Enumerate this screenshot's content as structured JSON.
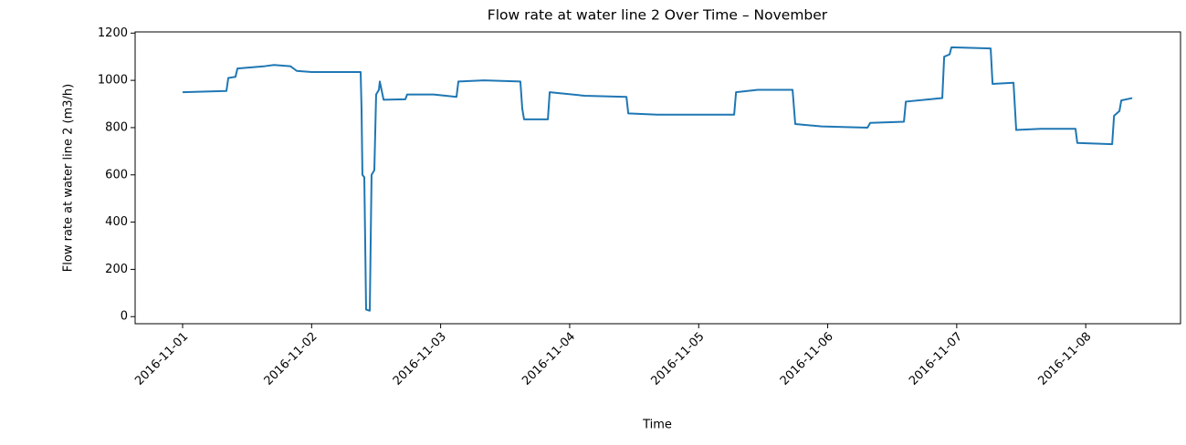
{
  "chart_data": {
    "type": "line",
    "title": "Flow rate at water line 2 Over Time – November",
    "xlabel": "Time",
    "ylabel": "Flow rate at water line 2 (m3/h)",
    "color": "#1f77b4",
    "x": [
      "2016-11-01 00:00",
      "2016-11-01 08:09",
      "2016-11-01 08:30",
      "2016-11-01 09:50",
      "2016-11-01 10:12",
      "2016-11-01 15:17",
      "2016-11-01 17:00",
      "2016-11-01 20:03",
      "2016-11-01 21:14",
      "2016-11-02 00:00",
      "2016-11-02 09:07",
      "2016-11-02 09:17",
      "2016-11-02 09:27",
      "2016-11-02 09:48",
      "2016-11-02 10:08",
      "2016-11-02 10:49",
      "2016-11-02 11:09",
      "2016-11-02 11:40",
      "2016-11-02 12:00",
      "2016-11-02 12:31",
      "2016-11-02 12:41",
      "2016-11-02 13:23",
      "2016-11-02 17:26",
      "2016-11-02 17:46",
      "2016-11-02 22:42",
      "2016-11-03 02:57",
      "2016-11-03 03:18",
      "2016-11-03 08:03",
      "2016-11-03 14:50",
      "2016-11-03 15:11",
      "2016-11-03 15:31",
      "2016-11-03 19:57",
      "2016-11-03 20:17",
      "2016-11-04 02:44",
      "2016-11-04 10:34",
      "2016-11-04 10:54",
      "2016-11-04 16:20",
      "2016-11-05 06:36",
      "2016-11-05 06:57",
      "2016-11-05 11:00",
      "2016-11-05 17:28",
      "2016-11-05 17:58",
      "2016-11-05 22:54",
      "2016-11-06 07:24",
      "2016-11-06 07:55",
      "2016-11-06 14:11",
      "2016-11-06 14:32",
      "2016-11-06 21:19",
      "2016-11-06 21:40",
      "2016-11-06 22:41",
      "2016-11-06 23:01",
      "2016-11-07 06:19",
      "2016-11-07 06:40",
      "2016-11-07 10:34",
      "2016-11-07 11:04",
      "2016-11-07 15:39",
      "2016-11-07 22:06",
      "2016-11-07 22:26",
      "2016-11-08 04:55",
      "2016-11-08 05:16",
      "2016-11-08 06:16",
      "2016-11-08 06:37",
      "2016-11-08 08:39"
    ],
    "values": [
      950,
      955,
      1010,
      1015,
      1050,
      1060,
      1065,
      1060,
      1040,
      1035,
      1035,
      880,
      600,
      590,
      30,
      25,
      600,
      620,
      940,
      960,
      995,
      918,
      920,
      940,
      940,
      930,
      995,
      1000,
      995,
      880,
      835,
      835,
      950,
      935,
      930,
      860,
      855,
      855,
      950,
      960,
      960,
      815,
      805,
      800,
      820,
      825,
      910,
      925,
      1100,
      1110,
      1140,
      1135,
      985,
      990,
      790,
      795,
      795,
      735,
      730,
      850,
      870,
      915,
      925
    ],
    "xlim": [
      "2016-10-31 15:10",
      "2016-11-08 17:38"
    ],
    "xticks": [
      "2016-11-01",
      "2016-11-02",
      "2016-11-03",
      "2016-11-04",
      "2016-11-05",
      "2016-11-06",
      "2016-11-07",
      "2016-11-08"
    ],
    "ylim": [
      -30,
      1205
    ],
    "yticks": [
      0,
      200,
      400,
      600,
      800,
      1000,
      1200
    ]
  }
}
